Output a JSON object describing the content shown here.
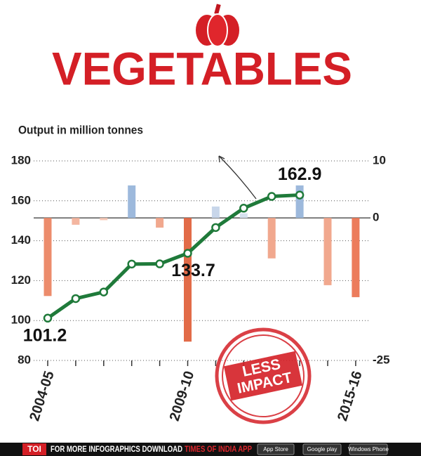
{
  "chart_data": {
    "type": "bar-line",
    "title": "VEGETABLES",
    "subtitle": "Output in million tonnes",
    "annotation": "LESS IMPACT",
    "categories": [
      "2004-05",
      null,
      null,
      null,
      null,
      "2009-10",
      null,
      null,
      null,
      null,
      null,
      "2015-16"
    ],
    "series": [
      {
        "type": "bar",
        "axis": "y2",
        "values": [
          -13.7,
          -1.2,
          -0.4,
          5.7,
          -1.7,
          -21.7,
          2.0,
          0.8,
          -7.1,
          5.7,
          -11.8,
          -13.9
        ],
        "colors": [
          "#ec8c6c",
          "#f4b6a0",
          "#f6c9b8",
          "#9db9dc",
          "#f1a88e",
          "#e26b48",
          "#c8d6ea",
          "#d6e1ef",
          "#f1a88e",
          "#9db9dc",
          "#f1a88e",
          "#ec7c5c"
        ]
      },
      {
        "type": "line",
        "color": "#1f7a3a",
        "values": [
          101.2,
          111,
          114.3,
          128.3,
          128.4,
          133.7,
          146.6,
          156.3,
          162.2,
          162.9,
          null,
          null
        ],
        "value_labels": [
          "101.2",
          null,
          null,
          null,
          null,
          "133.7",
          null,
          null,
          null,
          "162.9",
          null,
          null
        ]
      }
    ],
    "ylim": [
      80,
      180
    ],
    "yticks": [
      80,
      100,
      120,
      140,
      160,
      180
    ],
    "y2lim": [
      -25,
      10
    ],
    "y2ticks": [
      -25,
      0,
      10
    ],
    "grid": true
  },
  "footer": {
    "brand": "TOI",
    "text": "FOR MORE INFOGRAPHICS DOWNLOAD",
    "app": "TIMES OF INDIA APP",
    "stores": [
      "App Store",
      "Google play",
      "Windows Phone"
    ]
  }
}
